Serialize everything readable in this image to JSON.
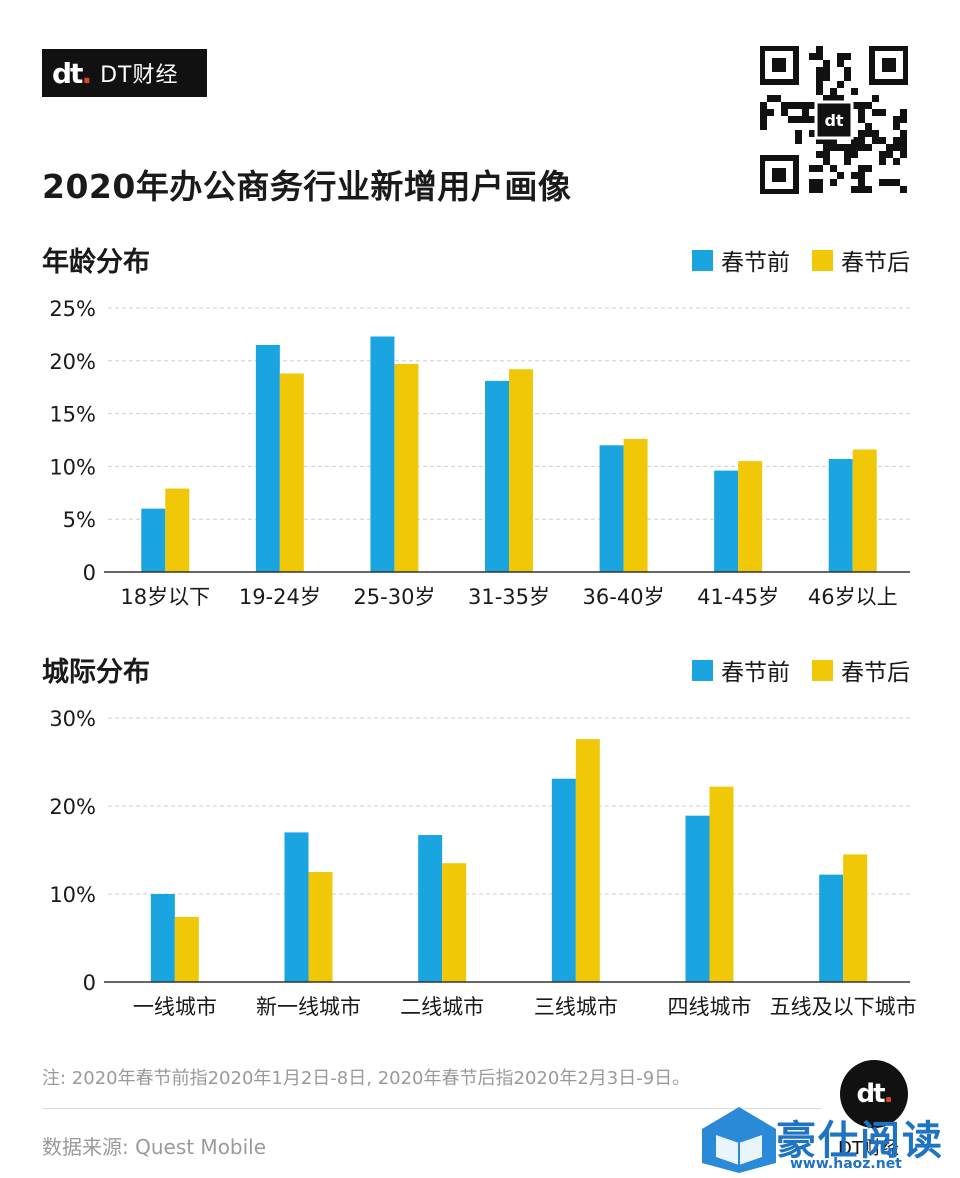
{
  "brand": {
    "logo_mark": "dt",
    "logo_text": "DT财经",
    "badge_caption": "DT财经"
  },
  "title": "2020年办公商务行业新增用户画像",
  "colors": {
    "before": "#1aa5e0",
    "after": "#f0c808",
    "grid": "#cfcfcf",
    "axis": "#333333"
  },
  "chart_data": [
    {
      "type": "bar",
      "title": "年龄分布",
      "categories": [
        "18岁以下",
        "19-24岁",
        "25-30岁",
        "31-35岁",
        "36-40岁",
        "41-45岁",
        "46岁以上"
      ],
      "series": [
        {
          "name": "春节前",
          "values": [
            6.0,
            21.5,
            22.3,
            18.1,
            12.0,
            9.6,
            10.7
          ]
        },
        {
          "name": "春节后",
          "values": [
            7.9,
            18.8,
            19.7,
            19.2,
            12.6,
            10.5,
            11.6
          ]
        }
      ],
      "ylim": [
        0,
        25
      ],
      "yticks": [
        {
          "value": 0,
          "label": "0"
        },
        {
          "value": 5,
          "label": "5%"
        },
        {
          "value": 10,
          "label": "10%"
        },
        {
          "value": 15,
          "label": "15%"
        },
        {
          "value": 20,
          "label": "20%"
        },
        {
          "value": 25,
          "label": "25%"
        }
      ],
      "grid": true,
      "legend": "top-right"
    },
    {
      "type": "bar",
      "title": "城际分布",
      "categories": [
        "一线城市",
        "新一线城市",
        "二线城市",
        "三线城市",
        "四线城市",
        "五线及以下城市"
      ],
      "series": [
        {
          "name": "春节前",
          "values": [
            10.0,
            17.0,
            16.7,
            23.1,
            18.9,
            12.2
          ]
        },
        {
          "name": "春节后",
          "values": [
            7.4,
            12.5,
            13.5,
            27.6,
            22.2,
            14.5
          ]
        }
      ],
      "ylim": [
        0,
        30
      ],
      "yticks": [
        {
          "value": 0,
          "label": "0"
        },
        {
          "value": 10,
          "label": "10%"
        },
        {
          "value": 20,
          "label": "20%"
        },
        {
          "value": 30,
          "label": "30%"
        }
      ],
      "grid": true,
      "legend": "top-right"
    }
  ],
  "note": "注: 2020年春节前指2020年1月2日-8日, 2020年春节后指2020年2月3日-9日。",
  "source": "数据来源: Quest Mobile",
  "watermark": {
    "text": "豪仕阅读",
    "url": "www.haoz.net"
  }
}
